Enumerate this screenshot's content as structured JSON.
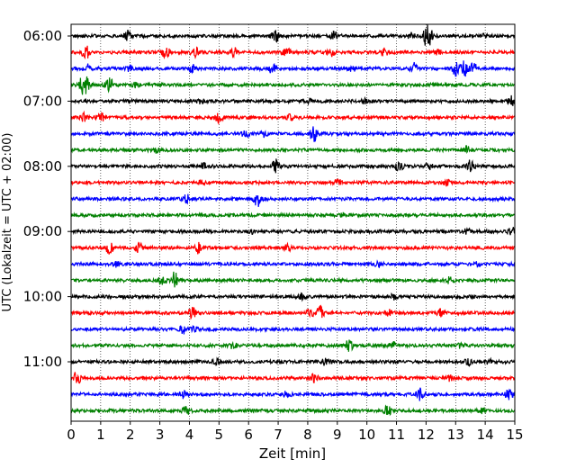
{
  "chart_data": {
    "type": "line",
    "title": "",
    "xlabel": "Zeit  [min]",
    "ylabel": "UTC (Lokalzeit = UTC + 02:00)",
    "xlim": [
      0,
      15
    ],
    "xticks": [
      0,
      1,
      2,
      3,
      4,
      5,
      6,
      7,
      8,
      9,
      10,
      11,
      12,
      13,
      14,
      15
    ],
    "grid": "vertical dotted",
    "row_interval_min": 15,
    "time_labels": [
      "06:00",
      "07:00",
      "08:00",
      "09:00",
      "10:00",
      "11:00"
    ],
    "time_label_rows": [
      0,
      4,
      8,
      12,
      16,
      20
    ],
    "colors": [
      "#000000",
      "#ff0000",
      "#0000ff",
      "#008000"
    ],
    "traces": [
      {
        "start": "06:00",
        "color": "#000000",
        "spikes": [
          [
            1.9,
            0.6
          ],
          [
            6.9,
            0.9
          ],
          [
            8.9,
            0.5
          ],
          [
            11.5,
            0.4
          ],
          [
            12.0,
            1.0
          ],
          [
            12.1,
            0.9
          ],
          [
            14.0,
            0.3
          ]
        ]
      },
      {
        "start": "06:15",
        "color": "#ff0000",
        "spikes": [
          [
            0.5,
            0.8
          ],
          [
            3.2,
            0.7
          ],
          [
            4.2,
            0.5
          ],
          [
            5.5,
            0.6
          ],
          [
            7.3,
            0.5
          ],
          [
            8.8,
            0.4
          ],
          [
            10.6,
            0.4
          ],
          [
            12.4,
            0.3
          ]
        ]
      },
      {
        "start": "06:30",
        "color": "#0000ff",
        "spikes": [
          [
            0.6,
            0.5
          ],
          [
            2.0,
            0.4
          ],
          [
            4.1,
            0.4
          ],
          [
            6.8,
            0.5
          ],
          [
            9.5,
            0.4
          ],
          [
            11.6,
            0.6
          ],
          [
            13.0,
            1.0
          ],
          [
            13.3,
            0.9
          ],
          [
            13.6,
            0.7
          ]
        ]
      },
      {
        "start": "06:45",
        "color": "#008000",
        "spikes": [
          [
            0.4,
            1.0
          ],
          [
            0.5,
            0.9
          ],
          [
            1.3,
            0.8
          ],
          [
            2.2,
            0.3
          ]
        ]
      },
      {
        "start": "07:00",
        "color": "#000000",
        "spikes": [
          [
            4.4,
            0.3
          ],
          [
            8.0,
            0.3
          ],
          [
            9.9,
            0.3
          ],
          [
            14.9,
            0.6
          ]
        ]
      },
      {
        "start": "07:15",
        "color": "#ff0000",
        "spikes": [
          [
            0.4,
            0.6
          ],
          [
            1.0,
            0.6
          ],
          [
            5.0,
            0.6
          ],
          [
            7.4,
            0.3
          ]
        ]
      },
      {
        "start": "07:30",
        "color": "#0000ff",
        "spikes": [
          [
            5.9,
            0.5
          ],
          [
            8.2,
            0.9
          ],
          [
            6.5,
            0.3
          ]
        ]
      },
      {
        "start": "07:45",
        "color": "#008000",
        "spikes": [
          [
            2.9,
            0.3
          ],
          [
            13.4,
            0.5
          ]
        ]
      },
      {
        "start": "08:00",
        "color": "#000000",
        "spikes": [
          [
            4.5,
            0.4
          ],
          [
            6.9,
            0.8
          ],
          [
            11.1,
            0.5
          ],
          [
            12.1,
            0.4
          ],
          [
            13.5,
            0.9
          ]
        ]
      },
      {
        "start": "08:15",
        "color": "#ff0000",
        "spikes": [
          [
            4.4,
            0.3
          ],
          [
            9.0,
            0.3
          ],
          [
            12.7,
            0.3
          ]
        ]
      },
      {
        "start": "08:30",
        "color": "#0000ff",
        "spikes": [
          [
            3.9,
            0.5
          ],
          [
            6.3,
            0.9
          ]
        ]
      },
      {
        "start": "08:45",
        "color": "#008000",
        "spikes": [
          [
            9.2,
            0.2
          ]
        ]
      },
      {
        "start": "09:00",
        "color": "#000000",
        "spikes": [
          [
            6.1,
            0.3
          ],
          [
            13.4,
            0.3
          ],
          [
            14.9,
            0.5
          ]
        ]
      },
      {
        "start": "09:15",
        "color": "#ff0000",
        "spikes": [
          [
            1.3,
            0.7
          ],
          [
            2.3,
            0.8
          ],
          [
            4.3,
            0.6
          ],
          [
            7.3,
            0.5
          ]
        ]
      },
      {
        "start": "09:30",
        "color": "#0000ff",
        "spikes": [
          [
            1.5,
            0.3
          ],
          [
            10.4,
            0.3
          ],
          [
            13.7,
            0.3
          ]
        ]
      },
      {
        "start": "09:45",
        "color": "#008000",
        "spikes": [
          [
            3.1,
            0.6
          ],
          [
            3.5,
            1.0
          ],
          [
            12.8,
            0.4
          ]
        ]
      },
      {
        "start": "10:00",
        "color": "#000000",
        "spikes": [
          [
            7.8,
            0.3
          ],
          [
            10.9,
            0.3
          ]
        ]
      },
      {
        "start": "10:15",
        "color": "#ff0000",
        "spikes": [
          [
            4.1,
            0.6
          ],
          [
            8.4,
            0.9
          ],
          [
            8.1,
            0.5
          ],
          [
            10.7,
            0.4
          ],
          [
            12.5,
            0.4
          ]
        ]
      },
      {
        "start": "10:30",
        "color": "#0000ff",
        "spikes": [
          [
            3.8,
            0.5
          ],
          [
            4.2,
            0.3
          ]
        ]
      },
      {
        "start": "10:45",
        "color": "#008000",
        "spikes": [
          [
            5.5,
            0.4
          ],
          [
            9.4,
            0.7
          ],
          [
            10.9,
            0.4
          ],
          [
            13.2,
            0.3
          ]
        ]
      },
      {
        "start": "11:00",
        "color": "#000000",
        "spikes": [
          [
            4.9,
            0.3
          ],
          [
            8.6,
            0.4
          ],
          [
            13.4,
            0.4
          ],
          [
            14.1,
            0.3
          ]
        ]
      },
      {
        "start": "11:15",
        "color": "#ff0000",
        "spikes": [
          [
            0.2,
            0.8
          ],
          [
            8.2,
            0.5
          ],
          [
            12.8,
            0.3
          ]
        ]
      },
      {
        "start": "11:30",
        "color": "#0000ff",
        "spikes": [
          [
            3.8,
            0.4
          ],
          [
            7.3,
            0.4
          ],
          [
            11.8,
            0.7
          ],
          [
            14.8,
            0.6
          ]
        ]
      },
      {
        "start": "11:45",
        "color": "#008000",
        "spikes": [
          [
            3.9,
            0.5
          ],
          [
            10.7,
            0.6
          ],
          [
            13.9,
            0.3
          ]
        ]
      }
    ]
  }
}
